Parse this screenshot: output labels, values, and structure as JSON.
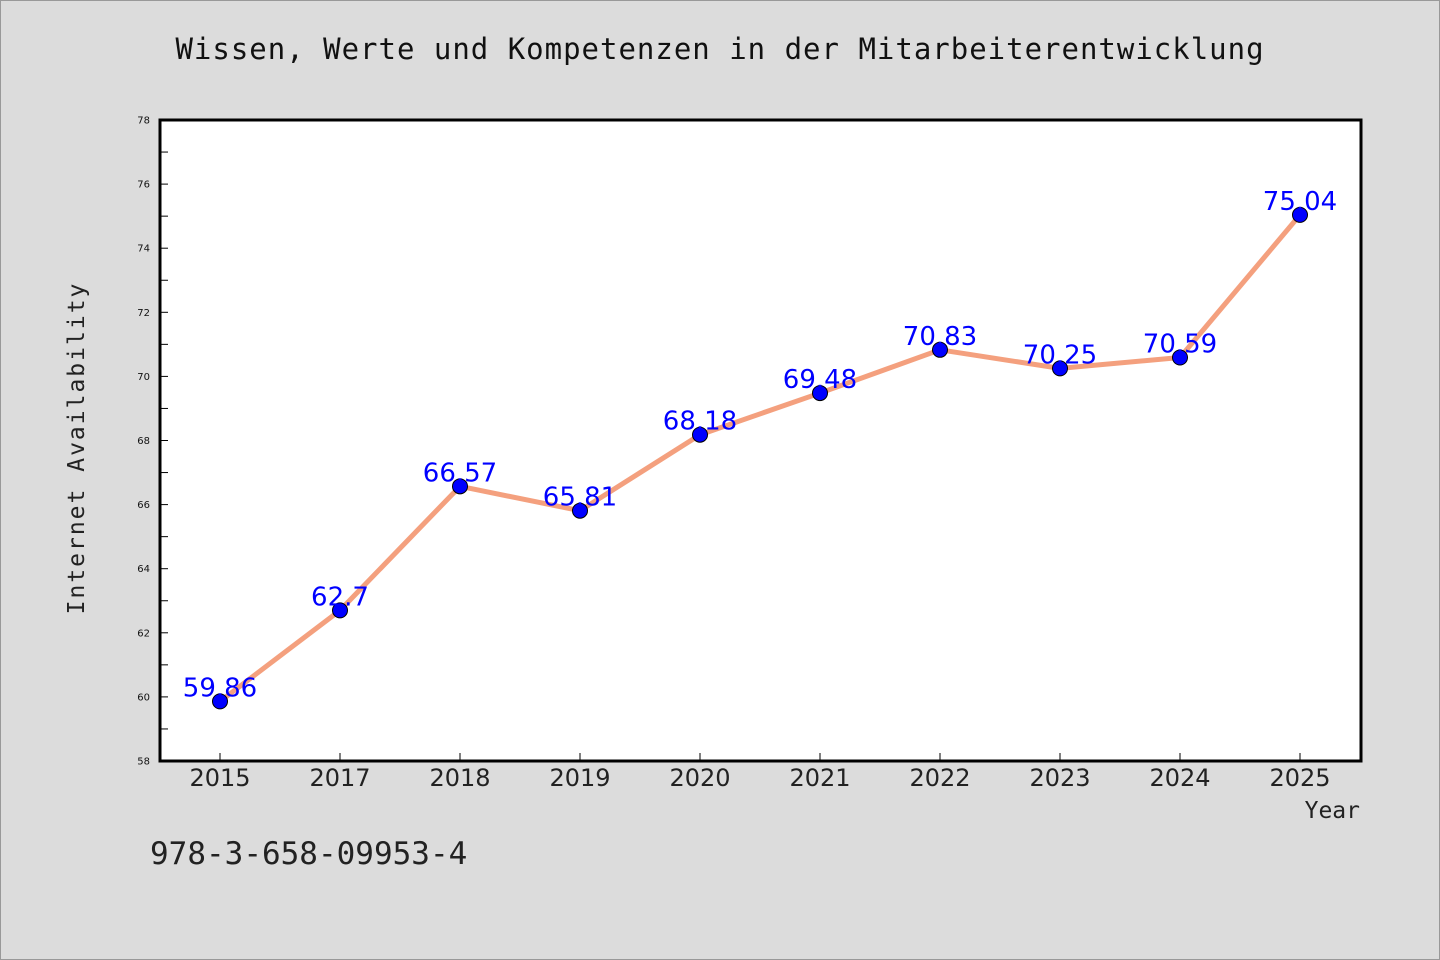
{
  "chart_data": {
    "type": "line",
    "title": "Wissen, Werte und Kompetenzen in der Mitarbeiterentwicklung",
    "xlabel": "Year",
    "ylabel": "Internet Availability",
    "categories": [
      "2015",
      "2017",
      "2018",
      "2019",
      "2020",
      "2021",
      "2022",
      "2023",
      "2024",
      "2025"
    ],
    "series": [
      {
        "values": [
          59.86,
          62.7,
          66.57,
          65.81,
          68.18,
          69.48,
          70.83,
          70.25,
          70.59,
          75.04
        ],
        "data_labels": [
          "59.86",
          "62.7",
          "66.57",
          "65.81",
          "68.18",
          "69.48",
          "70.83",
          "70.25",
          "70.59",
          "75.04"
        ]
      }
    ],
    "ylim": [
      58,
      78
    ],
    "yticks": [
      58,
      60,
      62,
      64,
      66,
      68,
      70,
      72,
      74,
      76,
      78
    ],
    "grid": false,
    "line_color": "#f4a07e",
    "marker_color": "#0000ff",
    "label_color": "#0000ff",
    "background": "#dcdcdc",
    "plot_background": "#ffffff"
  },
  "footer": {
    "code": "978-3-658-09953-4"
  }
}
